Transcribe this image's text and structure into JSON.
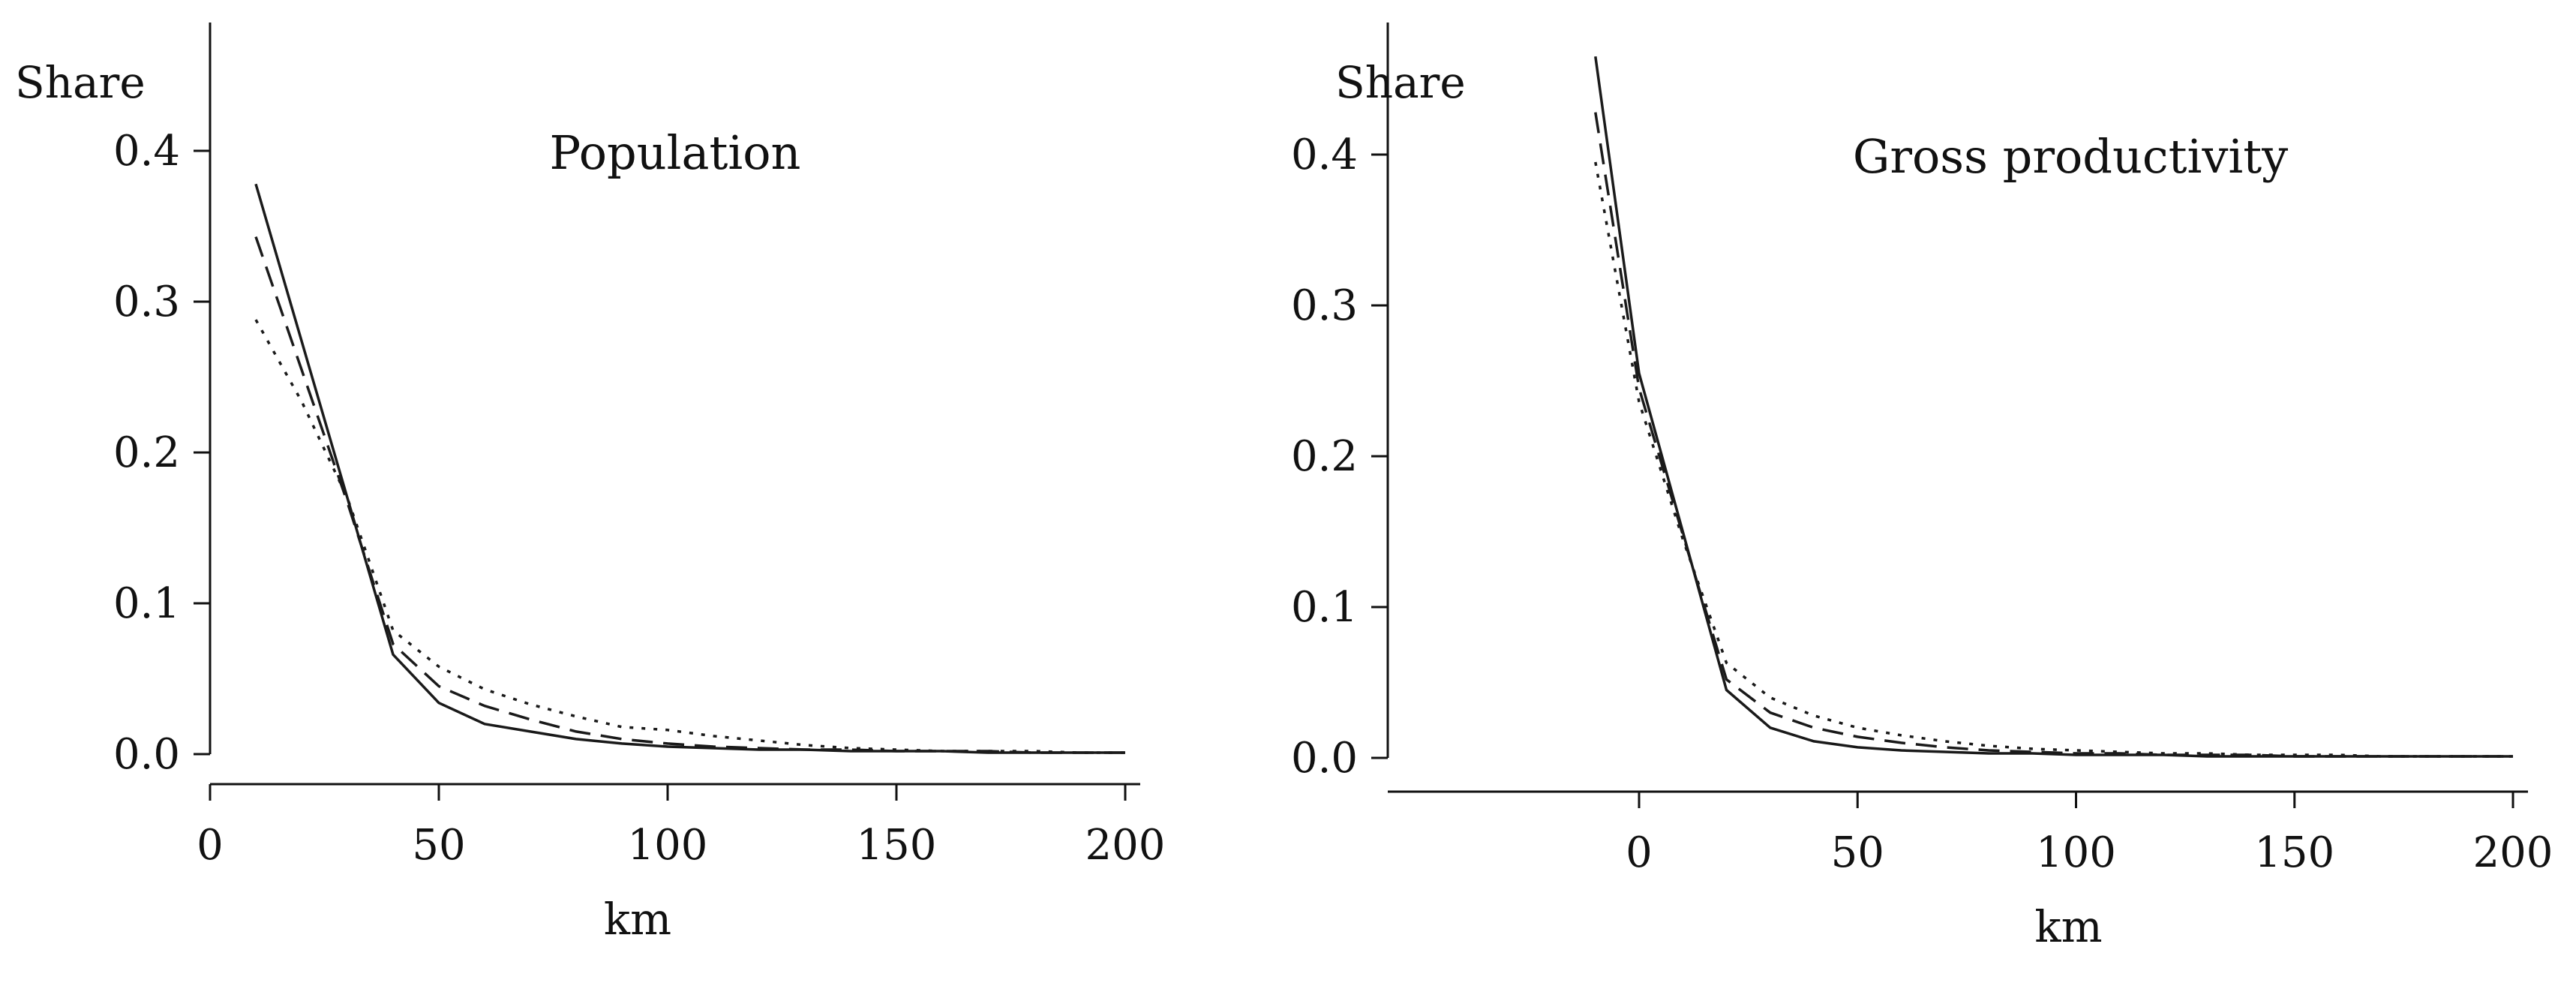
{
  "chart_data": [
    {
      "type": "line",
      "title": "Population",
      "xlabel": "km",
      "ylabel": "Share",
      "xticks": [
        "0",
        "50",
        "100",
        "150",
        "200"
      ],
      "yticks": [
        "0.0",
        "0.1",
        "0.2",
        "0.3",
        "0.4"
      ],
      "xlim": [
        0,
        200
      ],
      "ylim": [
        0,
        0.4
      ],
      "x": [
        10,
        20,
        30,
        40,
        50,
        60,
        70,
        80,
        90,
        100,
        110,
        120,
        130,
        140,
        150,
        160,
        170,
        180,
        190,
        200
      ],
      "series": [
        {
          "style": "solid",
          "values": [
            0.378,
            0.274,
            0.17,
            0.066,
            0.034,
            0.02,
            0.015,
            0.01,
            0.007,
            0.005,
            0.004,
            0.003,
            0.003,
            0.002,
            0.002,
            0.002,
            0.001,
            0.001,
            0.001,
            0.001
          ]
        },
        {
          "style": "dashed",
          "values": [
            0.343,
            0.255,
            0.167,
            0.073,
            0.045,
            0.032,
            0.023,
            0.015,
            0.01,
            0.007,
            0.005,
            0.004,
            0.003,
            0.003,
            0.002,
            0.002,
            0.002,
            0.001,
            0.001,
            0.001
          ]
        },
        {
          "style": "dotted",
          "values": [
            0.288,
            0.234,
            0.17,
            0.082,
            0.058,
            0.043,
            0.033,
            0.025,
            0.018,
            0.016,
            0.012,
            0.009,
            0.006,
            0.004,
            0.003,
            0.002,
            0.002,
            0.002,
            0.001,
            0.001
          ]
        }
      ]
    },
    {
      "type": "line",
      "title": "Gross productivity",
      "xlabel": "km",
      "ylabel": "Share",
      "xticks": [
        "0",
        "50",
        "100",
        "150",
        "200"
      ],
      "yticks": [
        "0.0",
        "0.1",
        "0.2",
        "0.3",
        "0.4"
      ],
      "xlim": [
        -20,
        200
      ],
      "ylim": [
        0,
        0.45
      ],
      "x": [
        -10,
        0,
        10,
        20,
        30,
        40,
        50,
        60,
        70,
        80,
        90,
        100,
        110,
        120,
        130,
        140,
        150,
        160,
        170,
        180,
        190,
        200
      ],
      "series": [
        {
          "style": "solid",
          "values": [
            0.465,
            0.255,
            0.15,
            0.045,
            0.02,
            0.011,
            0.007,
            0.005,
            0.004,
            0.003,
            0.003,
            0.002,
            0.002,
            0.002,
            0.001,
            0.001,
            0.001,
            0.001,
            0.001,
            0.001,
            0.001,
            0.001
          ]
        },
        {
          "style": "dashed",
          "values": [
            0.428,
            0.245,
            0.148,
            0.052,
            0.03,
            0.02,
            0.014,
            0.01,
            0.007,
            0.005,
            0.004,
            0.003,
            0.003,
            0.002,
            0.002,
            0.002,
            0.001,
            0.001,
            0.001,
            0.001,
            0.001,
            0.001
          ]
        },
        {
          "style": "dotted",
          "values": [
            0.395,
            0.236,
            0.145,
            0.063,
            0.04,
            0.028,
            0.02,
            0.015,
            0.011,
            0.008,
            0.006,
            0.005,
            0.004,
            0.003,
            0.003,
            0.002,
            0.002,
            0.002,
            0.001,
            0.001,
            0.001,
            0.001
          ]
        }
      ]
    }
  ]
}
